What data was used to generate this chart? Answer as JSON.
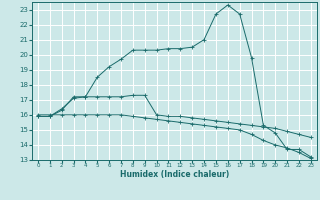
{
  "xlabel": "Humidex (Indice chaleur)",
  "ylabel": "",
  "bg_color": "#cce8e8",
  "grid_color": "#ffffff",
  "line_color": "#1a6b6b",
  "xlim": [
    -0.5,
    23.5
  ],
  "ylim": [
    13,
    23.5
  ],
  "yticks": [
    13,
    14,
    15,
    16,
    17,
    18,
    19,
    20,
    21,
    22,
    23
  ],
  "xticks": [
    0,
    1,
    2,
    3,
    4,
    5,
    6,
    7,
    8,
    9,
    10,
    11,
    12,
    13,
    14,
    15,
    16,
    17,
    18,
    19,
    20,
    21,
    22,
    23
  ],
  "line1_x": [
    0,
    1,
    2,
    3,
    4,
    5,
    6,
    7,
    8,
    9,
    10,
    11,
    12,
    13,
    14,
    15,
    16,
    17,
    18,
    19,
    20,
    21,
    22,
    23
  ],
  "line1_y": [
    15.9,
    15.9,
    16.3,
    17.2,
    17.2,
    18.5,
    19.2,
    19.7,
    20.3,
    20.3,
    20.3,
    20.4,
    20.4,
    20.5,
    21.0,
    22.7,
    23.3,
    22.7,
    19.8,
    15.3,
    14.8,
    13.7,
    13.7,
    13.2
  ],
  "line2_x": [
    0,
    1,
    2,
    3,
    4,
    5,
    6,
    7,
    8,
    9,
    10,
    11,
    12,
    13,
    14,
    15,
    16,
    17,
    18,
    19,
    20,
    21,
    22,
    23
  ],
  "line2_y": [
    15.9,
    15.9,
    16.4,
    17.1,
    17.2,
    17.2,
    17.2,
    17.2,
    17.3,
    17.3,
    16.0,
    15.9,
    15.9,
    15.8,
    15.7,
    15.6,
    15.5,
    15.4,
    15.3,
    15.2,
    15.1,
    14.9,
    14.7,
    14.5
  ],
  "line3_x": [
    0,
    1,
    2,
    3,
    4,
    5,
    6,
    7,
    8,
    9,
    10,
    11,
    12,
    13,
    14,
    15,
    16,
    17,
    18,
    19,
    20,
    21,
    22,
    23
  ],
  "line3_y": [
    16.0,
    16.0,
    16.0,
    16.0,
    16.0,
    16.0,
    16.0,
    16.0,
    15.9,
    15.8,
    15.7,
    15.6,
    15.5,
    15.4,
    15.3,
    15.2,
    15.1,
    15.0,
    14.7,
    14.3,
    14.0,
    13.8,
    13.5,
    13.1
  ]
}
